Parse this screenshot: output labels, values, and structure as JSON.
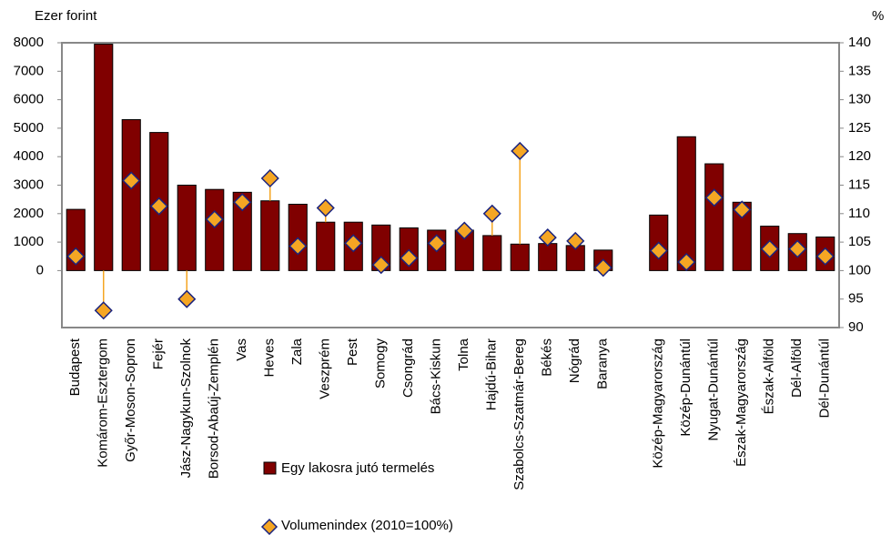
{
  "chart_data": {
    "type": "bar",
    "y_label": "Ezer forint",
    "y2_label": "%",
    "categories": [
      "Budapest",
      "Komárom-Esztergom",
      "Győr-Moson-Sopron",
      "Fejér",
      "Jász-Nagykun-Szolnok",
      "Borsod-Abaúj-Zemplén",
      "Vas",
      "Heves",
      "Zala",
      "Veszprém",
      "Pest",
      "Somogy",
      "Csongrád",
      "Bács-Kiskun",
      "Tolna",
      "Hajdú-Bihar",
      "Szabolcs-Szatmár-Bereg",
      "Békés",
      "Nógrád",
      "Baranya",
      null,
      "Közép-Magyarország",
      "Közép-Dunántúl",
      "Nyugat-Dunántúl",
      "Észak-Magyarország",
      "Észak-Alföld",
      "Dél-Alföld",
      "Dél-Dunántúl"
    ],
    "series": [
      {
        "name": "Egy lakosra jutó termelés",
        "color": "#800000",
        "values": [
          2150,
          7950,
          5300,
          4850,
          3000,
          2850,
          2750,
          2450,
          2330,
          1700,
          1700,
          1600,
          1500,
          1420,
          1420,
          1230,
          930,
          950,
          880,
          720,
          null,
          1950,
          4700,
          3750,
          2400,
          1560,
          1300,
          1180
        ]
      },
      {
        "name": "Volumenindex (2010=100%)",
        "color": "#f5a623",
        "axis": "y2",
        "marker": "diamond",
        "values": [
          102.5,
          93,
          115.8,
          111.3,
          95,
          109,
          112,
          116.2,
          104.3,
          111,
          104.8,
          101,
          102.2,
          104.8,
          107,
          110,
          121,
          105.8,
          105.2,
          100.5,
          null,
          103.5,
          101.5,
          112.8,
          110.7,
          103.8,
          103.8,
          102.5
        ]
      }
    ],
    "ylim": [
      -2000,
      8000
    ],
    "yticks": [
      0,
      1000,
      2000,
      3000,
      4000,
      5000,
      6000,
      7000,
      8000
    ],
    "y2lim": [
      90,
      140
    ],
    "y2ticks": [
      90,
      95,
      100,
      105,
      110,
      115,
      120,
      125,
      130,
      135,
      140
    ],
    "grid": false,
    "legend": "bottom"
  }
}
